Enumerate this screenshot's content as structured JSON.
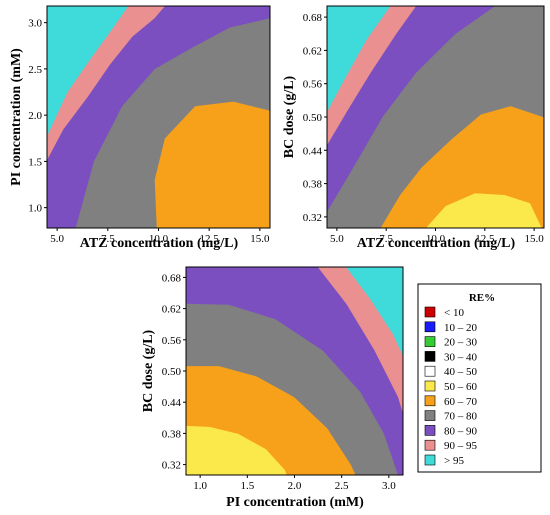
{
  "chart_data": [
    {
      "type": "contour",
      "xlabel": "ATZ concentration (mg/L)",
      "ylabel": "PI concentration (mM)",
      "xlim": [
        4.5,
        15.5
      ],
      "ylim": [
        0.78,
        3.18
      ],
      "xticks": [
        "5.0",
        "7.5",
        "10.0",
        "12.5",
        "15.0"
      ],
      "yticks": [
        "1.0",
        "1.5",
        "2.0",
        "2.5",
        "3.0"
      ],
      "regions": [
        {
          "level": "60 – 70",
          "color": "#f7a11a",
          "points": [
            [
              9.9,
              0.78
            ],
            [
              9.8,
              1.3
            ],
            [
              10.3,
              1.75
            ],
            [
              11.8,
              2.1
            ],
            [
              13.7,
              2.15
            ],
            [
              15.5,
              2.05
            ],
            [
              15.5,
              0.78
            ]
          ]
        },
        {
          "level": "70 – 80",
          "color": "#808080",
          "points": [
            [
              5.9,
              0.78
            ],
            [
              6.8,
              1.5
            ],
            [
              8.2,
              2.1
            ],
            [
              9.8,
              2.5
            ],
            [
              11.8,
              2.75
            ],
            [
              13.5,
              2.95
            ],
            [
              15.5,
              3.05
            ],
            [
              15.5,
              2.05
            ],
            [
              13.7,
              2.15
            ],
            [
              11.8,
              2.1
            ],
            [
              10.3,
              1.75
            ],
            [
              9.8,
              1.3
            ],
            [
              9.9,
              0.78
            ]
          ]
        },
        {
          "level": "80 – 90",
          "color": "#7b4fc0",
          "points": [
            [
              4.5,
              0.78
            ],
            [
              4.5,
              1.52
            ],
            [
              5.3,
              1.85
            ],
            [
              6.5,
              2.2
            ],
            [
              7.6,
              2.55
            ],
            [
              8.7,
              2.85
            ],
            [
              9.8,
              3.05
            ],
            [
              10.3,
              3.18
            ],
            [
              15.5,
              3.18
            ],
            [
              15.5,
              3.05
            ],
            [
              13.5,
              2.95
            ],
            [
              11.8,
              2.75
            ],
            [
              9.8,
              2.5
            ],
            [
              8.2,
              2.1
            ],
            [
              6.8,
              1.5
            ],
            [
              5.9,
              0.78
            ]
          ]
        },
        {
          "level": "90 – 95",
          "color": "#ea9090",
          "points": [
            [
              4.5,
              1.52
            ],
            [
              4.5,
              1.78
            ],
            [
              5.5,
              2.25
            ],
            [
              6.6,
              2.6
            ],
            [
              7.6,
              2.9
            ],
            [
              8.5,
              3.18
            ],
            [
              10.3,
              3.18
            ],
            [
              9.8,
              3.05
            ],
            [
              8.7,
              2.85
            ],
            [
              7.6,
              2.55
            ],
            [
              6.5,
              2.2
            ],
            [
              5.3,
              1.85
            ]
          ]
        },
        {
          "level": "> 95",
          "color": "#3fdada",
          "points": [
            [
              4.5,
              1.78
            ],
            [
              4.5,
              3.18
            ],
            [
              8.5,
              3.18
            ],
            [
              7.6,
              2.9
            ],
            [
              6.6,
              2.6
            ],
            [
              5.5,
              2.25
            ]
          ]
        }
      ]
    },
    {
      "type": "contour",
      "xlabel": "ATZ concentration (mg/L)",
      "ylabel": "BC dose (g/L)",
      "xlim": [
        4.5,
        15.5
      ],
      "ylim": [
        0.3,
        0.7
      ],
      "xticks": [
        "5.0",
        "7.5",
        "10.0",
        "12.5",
        "15.0"
      ],
      "yticks": [
        "0.32",
        "0.38",
        "0.44",
        "0.50",
        "0.56",
        "0.62",
        "0.68"
      ],
      "regions": [
        {
          "level": "50 – 60",
          "color": "#fbe84a",
          "points": [
            [
              9.5,
              0.3
            ],
            [
              10.5,
              0.34
            ],
            [
              12.0,
              0.363
            ],
            [
              13.5,
              0.36
            ],
            [
              14.8,
              0.345
            ],
            [
              15.4,
              0.3
            ]
          ]
        },
        {
          "level": "60 – 70",
          "color": "#f7a11a",
          "points": [
            [
              7.2,
              0.3
            ],
            [
              8.2,
              0.36
            ],
            [
              9.3,
              0.41
            ],
            [
              10.8,
              0.46
            ],
            [
              12.3,
              0.505
            ],
            [
              13.8,
              0.52
            ],
            [
              15.5,
              0.5
            ],
            [
              15.5,
              0.3
            ],
            [
              15.4,
              0.3
            ],
            [
              14.8,
              0.345
            ],
            [
              13.5,
              0.36
            ],
            [
              12.0,
              0.363
            ],
            [
              10.5,
              0.34
            ],
            [
              9.5,
              0.3
            ]
          ]
        },
        {
          "level": "70 – 80",
          "color": "#808080",
          "points": [
            [
              4.5,
              0.33
            ],
            [
              5.0,
              0.36
            ],
            [
              6.0,
              0.42
            ],
            [
              7.3,
              0.5
            ],
            [
              9.0,
              0.58
            ],
            [
              11.0,
              0.65
            ],
            [
              13.0,
              0.7
            ],
            [
              15.5,
              0.7
            ],
            [
              15.5,
              0.5
            ],
            [
              13.8,
              0.52
            ],
            [
              12.3,
              0.505
            ],
            [
              10.8,
              0.46
            ],
            [
              9.3,
              0.41
            ],
            [
              8.2,
              0.36
            ],
            [
              7.2,
              0.3
            ],
            [
              4.5,
              0.3
            ]
          ]
        },
        {
          "level": "80 – 90",
          "color": "#7b4fc0",
          "points": [
            [
              4.5,
              0.45
            ],
            [
              5.5,
              0.51
            ],
            [
              6.7,
              0.58
            ],
            [
              8.0,
              0.65
            ],
            [
              9.0,
              0.7
            ],
            [
              13.0,
              0.7
            ],
            [
              11.0,
              0.65
            ],
            [
              9.0,
              0.58
            ],
            [
              7.3,
              0.5
            ],
            [
              6.0,
              0.42
            ],
            [
              5.0,
              0.36
            ],
            [
              4.5,
              0.33
            ]
          ]
        },
        {
          "level": "90 – 95",
          "color": "#ea9090",
          "points": [
            [
              4.5,
              0.51
            ],
            [
              5.4,
              0.57
            ],
            [
              6.5,
              0.64
            ],
            [
              7.7,
              0.7
            ],
            [
              9.0,
              0.7
            ],
            [
              8.0,
              0.65
            ],
            [
              6.7,
              0.58
            ],
            [
              5.5,
              0.51
            ],
            [
              4.5,
              0.45
            ]
          ]
        },
        {
          "level": "> 95",
          "color": "#3fdada",
          "points": [
            [
              4.5,
              0.51
            ],
            [
              4.5,
              0.7
            ],
            [
              7.7,
              0.7
            ],
            [
              6.5,
              0.64
            ],
            [
              5.4,
              0.57
            ]
          ]
        }
      ]
    },
    {
      "type": "contour",
      "xlabel": "PI concentration (mM)",
      "ylabel": "BC dose (g/L)",
      "xlim": [
        0.85,
        3.15
      ],
      "ylim": [
        0.3,
        0.7
      ],
      "xticks": [
        "1.0",
        "1.5",
        "2.0",
        "2.5",
        "3.0"
      ],
      "yticks": [
        "0.32",
        "0.38",
        "0.44",
        "0.50",
        "0.56",
        "0.62",
        "0.68"
      ],
      "regions": [
        {
          "level": "50 – 60",
          "color": "#fbe84a",
          "points": [
            [
              0.85,
              0.3
            ],
            [
              0.85,
              0.395
            ],
            [
              1.1,
              0.393
            ],
            [
              1.4,
              0.38
            ],
            [
              1.7,
              0.35
            ],
            [
              1.9,
              0.31
            ],
            [
              1.92,
              0.3
            ]
          ]
        },
        {
          "level": "60 – 70",
          "color": "#f7a11a",
          "points": [
            [
              0.85,
              0.395
            ],
            [
              0.85,
              0.51
            ],
            [
              1.2,
              0.51
            ],
            [
              1.6,
              0.49
            ],
            [
              2.0,
              0.45
            ],
            [
              2.35,
              0.39
            ],
            [
              2.6,
              0.32
            ],
            [
              2.65,
              0.3
            ],
            [
              1.92,
              0.3
            ],
            [
              1.9,
              0.31
            ],
            [
              1.7,
              0.35
            ],
            [
              1.4,
              0.38
            ],
            [
              1.1,
              0.393
            ]
          ]
        },
        {
          "level": "70 – 80",
          "color": "#808080",
          "points": [
            [
              0.85,
              0.51
            ],
            [
              0.85,
              0.63
            ],
            [
              1.3,
              0.628
            ],
            [
              1.8,
              0.6
            ],
            [
              2.3,
              0.54
            ],
            [
              2.7,
              0.46
            ],
            [
              2.95,
              0.38
            ],
            [
              3.1,
              0.3
            ],
            [
              2.65,
              0.3
            ],
            [
              2.6,
              0.32
            ],
            [
              2.35,
              0.39
            ],
            [
              2.0,
              0.45
            ],
            [
              1.6,
              0.49
            ],
            [
              1.2,
              0.51
            ]
          ]
        },
        {
          "level": "80 – 90",
          "color": "#7b4fc0",
          "points": [
            [
              0.85,
              0.63
            ],
            [
              0.85,
              0.7
            ],
            [
              2.25,
              0.7
            ],
            [
              2.55,
              0.63
            ],
            [
              2.85,
              0.54
            ],
            [
              3.1,
              0.45
            ],
            [
              3.15,
              0.42
            ],
            [
              3.15,
              0.3
            ],
            [
              3.1,
              0.3
            ],
            [
              2.95,
              0.38
            ],
            [
              2.7,
              0.46
            ],
            [
              2.3,
              0.54
            ],
            [
              1.8,
              0.6
            ],
            [
              1.3,
              0.628
            ]
          ]
        },
        {
          "level": "90 – 95",
          "color": "#ea9090",
          "points": [
            [
              2.25,
              0.7
            ],
            [
              2.55,
              0.7
            ],
            [
              2.8,
              0.64
            ],
            [
              3.05,
              0.57
            ],
            [
              3.15,
              0.53
            ],
            [
              3.15,
              0.42
            ],
            [
              3.1,
              0.45
            ],
            [
              2.85,
              0.54
            ],
            [
              2.55,
              0.63
            ]
          ]
        },
        {
          "level": "> 95",
          "color": "#3fdada",
          "points": [
            [
              2.55,
              0.7
            ],
            [
              3.15,
              0.7
            ],
            [
              3.15,
              0.53
            ],
            [
              3.05,
              0.57
            ],
            [
              2.8,
              0.64
            ]
          ]
        }
      ]
    }
  ],
  "legend": {
    "title": "RE%",
    "items": [
      {
        "label": "<  10",
        "color": "#cc0000"
      },
      {
        "label": "10  –  20",
        "color": "#1a1aff"
      },
      {
        "label": "20  –  30",
        "color": "#33cc33"
      },
      {
        "label": "30  –  40",
        "color": "#000000"
      },
      {
        "label": "40  –  50",
        "color": "#ffffff"
      },
      {
        "label": "50  –  60",
        "color": "#fbe84a"
      },
      {
        "label": "60  –  70",
        "color": "#f7a11a"
      },
      {
        "label": "70  –  80",
        "color": "#808080"
      },
      {
        "label": "80  –  90",
        "color": "#7b4fc0"
      },
      {
        "label": "90  –  95",
        "color": "#ea9090"
      },
      {
        "label": ">  95",
        "color": "#3fdada"
      }
    ]
  }
}
